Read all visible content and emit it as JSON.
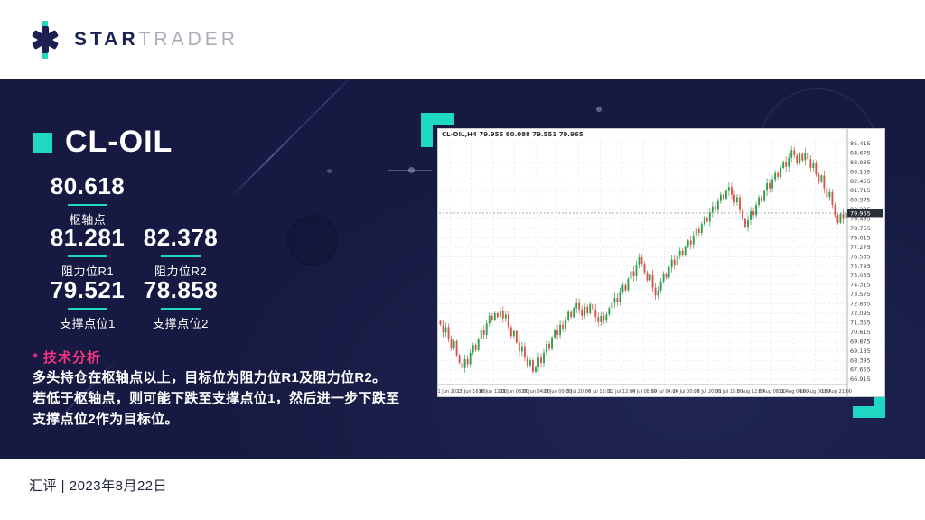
{
  "brand": {
    "star": "STAR",
    "trader": "TRADER"
  },
  "accent": {
    "teal": "#1fd8c4",
    "pink": "#f8337d",
    "navy": "#161a42"
  },
  "panel": {
    "symbol": "CL-OIL",
    "pivot": {
      "value": "80.618",
      "label": "枢轴点"
    },
    "levels": [
      {
        "value": "81.281",
        "label": "阻力位R1"
      },
      {
        "value": "82.378",
        "label": "阻力位R2"
      },
      {
        "value": "79.521",
        "label": "支撑点位1"
      },
      {
        "value": "78.858",
        "label": "支撑点位2"
      }
    ],
    "analysis_title": "* 技术分析",
    "analysis_lines": [
      "多头持仓在枢轴点以上，目标位为阻力位R1及阻力位R2。",
      "若低于枢轴点，则可能下跌至支撑点位1，然后进一步下跌至",
      "支撑点位2作为目标位。"
    ]
  },
  "footer": {
    "text": "汇评 | 2023年8月22日"
  },
  "chart_data": {
    "type": "candlestick",
    "title": "CL-OIL,H4 79.955 80.088 79.551 79.965",
    "symbol": "CL-OIL",
    "timeframe": "H4",
    "ylim": [
      66.5,
      85.7
    ],
    "current_price": 79.965,
    "colors": {
      "up": "#2f9e4f",
      "down": "#d9534a",
      "grid": "#d4d8e0",
      "price_tag_bg": "#2a2e39"
    },
    "price_axis_labels": [
      "85.415",
      "84.675",
      "83.935",
      "83.195",
      "82.455",
      "81.715",
      "80.975",
      "80.235",
      "79.495",
      "78.755",
      "78.015",
      "77.275",
      "76.535",
      "75.795",
      "75.055",
      "74.315",
      "73.575",
      "72.835",
      "72.095",
      "71.355",
      "70.615",
      "69.875",
      "69.135",
      "68.395",
      "67.655",
      "66.915"
    ],
    "time_axis_labels": [
      "1 Jun 2023",
      "13 Jun 16:00",
      "16 Jun 12:00",
      "21 Jun 08:00",
      "26 Jun 04:00",
      "29 Jun 00:00",
      "3 Jul 20:00",
      "6 Jul 16:00",
      "11 Jul 12:00",
      "14 Jul 08:00",
      "19 Jul 04:00",
      "24 Jul 00:00",
      "26 Jul 20:00",
      "31 Jul 16:00",
      "3 Aug 12:00",
      "8 Aug 08:00",
      "11 Aug 04:00",
      "16 Aug 00:00",
      "18 Aug 21:00"
    ],
    "closes": [
      71.2,
      70.6,
      71.0,
      70.1,
      69.4,
      69.9,
      68.8,
      68.2,
      67.8,
      68.5,
      68.1,
      69.0,
      69.6,
      69.2,
      70.1,
      70.8,
      70.4,
      71.3,
      71.9,
      71.6,
      72.1,
      71.8,
      72.3,
      71.7,
      72.0,
      71.0,
      70.3,
      70.7,
      69.8,
      69.1,
      69.5,
      68.6,
      68.0,
      68.4,
      67.5,
      67.9,
      68.6,
      68.2,
      69.0,
      69.7,
      69.3,
      70.2,
      70.8,
      70.4,
      71.2,
      70.9,
      71.6,
      72.2,
      71.8,
      72.5,
      72.9,
      72.4,
      71.9,
      72.6,
      72.1,
      72.8,
      72.4,
      71.8,
      71.4,
      71.9,
      71.5,
      72.0,
      72.5,
      72.9,
      73.3,
      73.0,
      73.8,
      74.3,
      73.9,
      74.8,
      75.4,
      75.0,
      75.9,
      76.5,
      76.0,
      75.3,
      74.7,
      75.1,
      74.1,
      73.5,
      73.9,
      74.6,
      75.2,
      74.9,
      75.7,
      76.3,
      75.9,
      76.6,
      77.0,
      76.7,
      77.3,
      77.8,
      77.5,
      78.2,
      78.7,
      78.4,
      79.1,
      79.6,
      79.3,
      80.0,
      80.5,
      80.2,
      80.9,
      81.4,
      81.1,
      81.7,
      82.0,
      81.4,
      80.8,
      81.2,
      80.2,
      79.5,
      78.9,
      79.4,
      80.1,
      79.8,
      80.6,
      81.2,
      80.9,
      81.7,
      82.3,
      81.9,
      82.6,
      83.1,
      82.8,
      83.5,
      84.0,
      83.6,
      84.3,
      84.9,
      84.5,
      83.9,
      84.6,
      84.1,
      84.7,
      84.2,
      83.5,
      83.9,
      83.0,
      82.4,
      82.9,
      81.9,
      81.2,
      81.6,
      80.6,
      79.8,
      79.2,
      79.9,
      79.5,
      79.965
    ]
  }
}
